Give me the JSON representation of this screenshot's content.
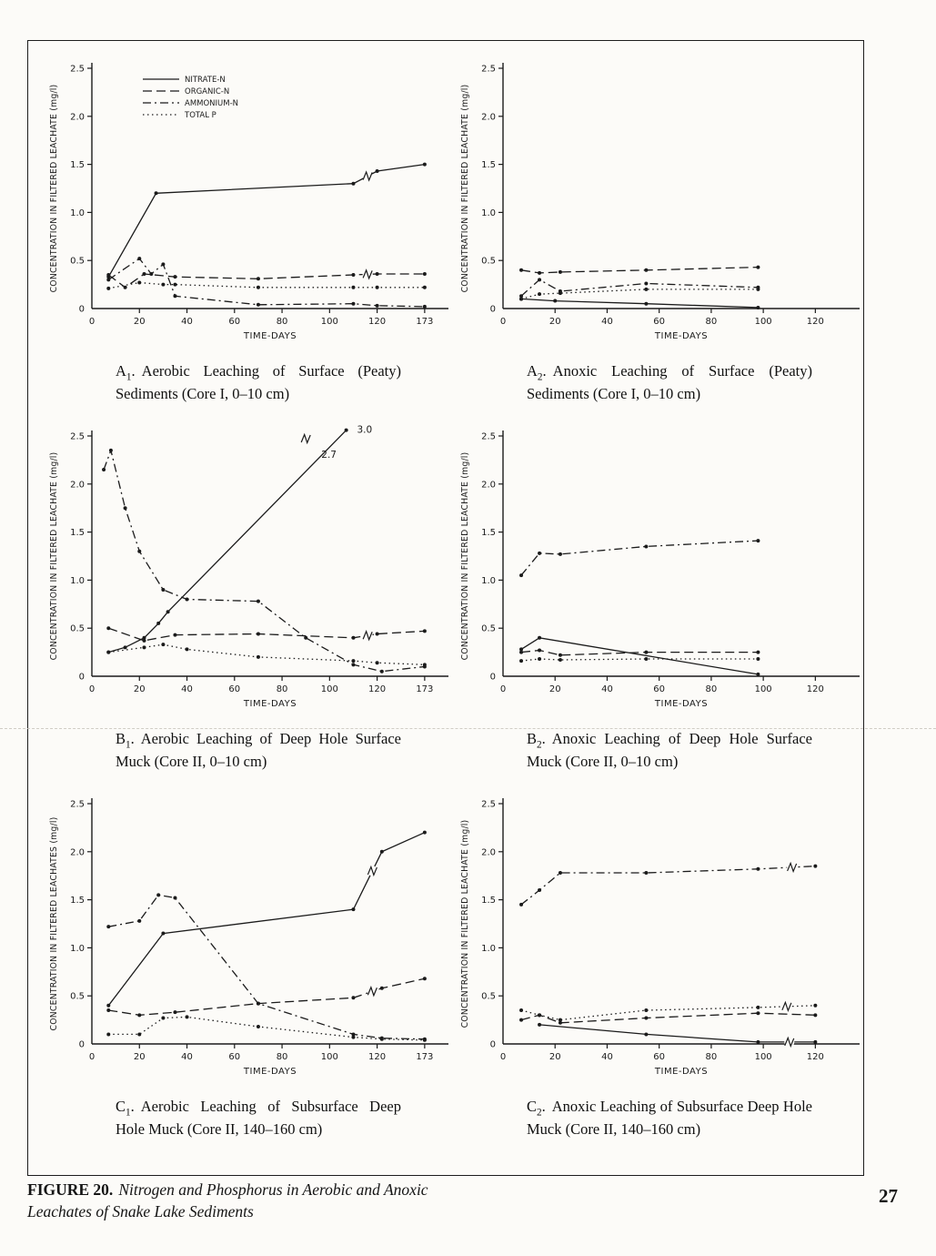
{
  "page": {
    "figure_caption_bold": "FIGURE 20.",
    "figure_caption_italic": "Nitrogen and Phosphorus in Aerobic and Anoxic Leachates of Snake Lake Sediments",
    "page_number": "27"
  },
  "legend": {
    "position": "top-left-inside-chart-A1",
    "items": [
      {
        "label": "NITRATE-N",
        "style": "solid"
      },
      {
        "label": "ORGANIC-N",
        "style": "long-dash"
      },
      {
        "label": "AMMONIUM-N",
        "style": "dash-dot"
      },
      {
        "label": "TOTAL P",
        "style": "dotted"
      }
    ]
  },
  "chart_data": [
    {
      "id": "A1",
      "type": "line",
      "legend": true,
      "caption": {
        "letter": "A",
        "sub": "1",
        "sep": ".",
        "body": "Aerobic Leaching of Surface (Peaty) Sediments (Core I, 0–10 cm)"
      },
      "ylabel": "CONCENTRATION IN FILTERED LEACHATE (mg/l)",
      "xlabel": "TIME-DAYS",
      "ylim": [
        0,
        2.5
      ],
      "xlim": [
        0,
        173
      ],
      "yticks": [
        0,
        0.5,
        1.0,
        1.5,
        2.0,
        2.5
      ],
      "xticks": [
        0,
        20,
        40,
        60,
        80,
        100,
        120
      ],
      "extra_xtick": 173,
      "series": [
        {
          "name": "NITRATE-N",
          "style": "solid",
          "points": [
            [
              7,
              0.33
            ],
            [
              27,
              1.2
            ],
            [
              110,
              1.3
            ],
            [
              120,
              1.43
            ],
            [
              173,
              1.5
            ]
          ],
          "break_at": [
            116
          ]
        },
        {
          "name": "ORGANIC-N",
          "style": "long-dash",
          "points": [
            [
              7,
              0.35
            ],
            [
              14,
              0.22
            ],
            [
              22,
              0.36
            ],
            [
              35,
              0.33
            ],
            [
              70,
              0.31
            ],
            [
              110,
              0.35
            ],
            [
              120,
              0.36
            ],
            [
              173,
              0.36
            ]
          ],
          "break_at": [
            116
          ]
        },
        {
          "name": "AMMONIUM-N",
          "style": "dash-dot",
          "points": [
            [
              7,
              0.3
            ],
            [
              20,
              0.52
            ],
            [
              25,
              0.36
            ],
            [
              30,
              0.46
            ],
            [
              35,
              0.13
            ],
            [
              70,
              0.04
            ],
            [
              110,
              0.05
            ],
            [
              120,
              0.03
            ],
            [
              173,
              0.02
            ]
          ],
          "break_at": []
        },
        {
          "name": "TOTAL P",
          "style": "dotted",
          "points": [
            [
              7,
              0.21
            ],
            [
              20,
              0.27
            ],
            [
              30,
              0.25
            ],
            [
              35,
              0.25
            ],
            [
              70,
              0.22
            ],
            [
              110,
              0.22
            ],
            [
              120,
              0.22
            ],
            [
              173,
              0.22
            ]
          ],
          "break_at": []
        }
      ],
      "annotations": []
    },
    {
      "id": "A2",
      "type": "line",
      "legend": false,
      "caption": {
        "letter": "A",
        "sub": "2",
        "sep": ".",
        "body": "Anoxic Leaching of Surface (Peaty) Sediments (Core I, 0–10 cm)"
      },
      "ylabel": "CONCENTRATION IN FILTERED LEACHATE (mg/l)",
      "xlabel": "TIME-DAYS",
      "ylim": [
        0,
        2.5
      ],
      "xlim": [
        0,
        130
      ],
      "yticks": [
        0,
        0.5,
        1.0,
        1.5,
        2.0,
        2.5
      ],
      "xticks": [
        0,
        20,
        40,
        60,
        80,
        100,
        120
      ],
      "extra_xtick": null,
      "series": [
        {
          "name": "NITRATE-N",
          "style": "solid",
          "points": [
            [
              7,
              0.1
            ],
            [
              20,
              0.08
            ],
            [
              55,
              0.05
            ],
            [
              98,
              0.01
            ]
          ],
          "break_at": []
        },
        {
          "name": "ORGANIC-N",
          "style": "long-dash",
          "points": [
            [
              7,
              0.4
            ],
            [
              14,
              0.37
            ],
            [
              22,
              0.38
            ],
            [
              55,
              0.4
            ],
            [
              98,
              0.43
            ]
          ],
          "break_at": []
        },
        {
          "name": "AMMONIUM-N",
          "style": "dash-dot",
          "points": [
            [
              7,
              0.13
            ],
            [
              14,
              0.3
            ],
            [
              22,
              0.18
            ],
            [
              55,
              0.26
            ],
            [
              98,
              0.22
            ]
          ],
          "break_at": []
        },
        {
          "name": "TOTAL P",
          "style": "dotted",
          "points": [
            [
              7,
              0.1
            ],
            [
              14,
              0.15
            ],
            [
              22,
              0.16
            ],
            [
              55,
              0.2
            ],
            [
              98,
              0.2
            ]
          ],
          "break_at": []
        }
      ],
      "annotations": []
    },
    {
      "id": "B1",
      "type": "line",
      "legend": false,
      "caption": {
        "letter": "B",
        "sub": "1",
        "sep": ".",
        "body": "Aerobic Leaching of Deep Hole Surface Muck (Core II, 0–10 cm)"
      },
      "ylabel": "CONCENTRATION IN FILTERED LEACHATE (mg/l)",
      "xlabel": "TIME-DAYS",
      "ylim": [
        0,
        2.5
      ],
      "xlim": [
        0,
        173
      ],
      "yticks": [
        0,
        0.5,
        1.0,
        1.5,
        2.0,
        2.5
      ],
      "xticks": [
        0,
        20,
        40,
        60,
        80,
        100,
        120
      ],
      "extra_xtick": 173,
      "series": [
        {
          "name": "NITRATE-N",
          "style": "solid",
          "points": [
            [
              7,
              0.25
            ],
            [
              14,
              0.3
            ],
            [
              22,
              0.4
            ],
            [
              28,
              0.55
            ],
            [
              32,
              0.67
            ],
            [
              107,
              3.0
            ]
          ],
          "break_at": [
            90
          ]
        },
        {
          "name": "ORGANIC-N",
          "style": "long-dash",
          "points": [
            [
              7,
              0.5
            ],
            [
              22,
              0.37
            ],
            [
              35,
              0.43
            ],
            [
              70,
              0.44
            ],
            [
              110,
              0.4
            ],
            [
              120,
              0.44
            ],
            [
              173,
              0.47
            ]
          ],
          "break_at": [
            116
          ]
        },
        {
          "name": "AMMONIUM-N",
          "style": "dash-dot",
          "points": [
            [
              5,
              2.15
            ],
            [
              8,
              2.35
            ],
            [
              14,
              1.75
            ],
            [
              20,
              1.3
            ],
            [
              30,
              0.9
            ],
            [
              40,
              0.8
            ],
            [
              70,
              0.78
            ],
            [
              90,
              0.4
            ],
            [
              110,
              0.12
            ],
            [
              122,
              0.05
            ],
            [
              173,
              0.1
            ]
          ],
          "break_at": []
        },
        {
          "name": "TOTAL P",
          "style": "dotted",
          "points": [
            [
              7,
              0.25
            ],
            [
              22,
              0.3
            ],
            [
              30,
              0.33
            ],
            [
              40,
              0.28
            ],
            [
              70,
              0.2
            ],
            [
              110,
              0.16
            ],
            [
              120,
              0.14
            ],
            [
              173,
              0.12
            ]
          ],
          "break_at": []
        }
      ],
      "annotations": [
        {
          "x": 95,
          "y": 2.3,
          "text": "2.7"
        },
        {
          "x": 110,
          "y": 2.56,
          "text": "3.0"
        }
      ]
    },
    {
      "id": "B2",
      "type": "line",
      "legend": false,
      "caption": {
        "letter": "B",
        "sub": "2",
        "sep": ".",
        "body": "Anoxic Leaching of Deep Hole Surface Muck (Core II, 0–10 cm)"
      },
      "ylabel": "CONCENTRATION IN FILTERED LEACHATE (mg/l)",
      "xlabel": "TIME-DAYS",
      "ylim": [
        0,
        2.5
      ],
      "xlim": [
        0,
        130
      ],
      "yticks": [
        0,
        0.5,
        1.0,
        1.5,
        2.0,
        2.5
      ],
      "xticks": [
        0,
        20,
        40,
        60,
        80,
        100,
        120
      ],
      "extra_xtick": null,
      "series": [
        {
          "name": "NITRATE-N",
          "style": "solid",
          "points": [
            [
              7,
              0.28
            ],
            [
              14,
              0.4
            ],
            [
              98,
              0.02
            ]
          ],
          "break_at": []
        },
        {
          "name": "ORGANIC-N",
          "style": "long-dash",
          "points": [
            [
              7,
              0.25
            ],
            [
              14,
              0.27
            ],
            [
              22,
              0.22
            ],
            [
              55,
              0.25
            ],
            [
              98,
              0.25
            ]
          ],
          "break_at": []
        },
        {
          "name": "AMMONIUM-N",
          "style": "dash-dot",
          "points": [
            [
              7,
              1.05
            ],
            [
              14,
              1.28
            ],
            [
              22,
              1.27
            ],
            [
              55,
              1.35
            ],
            [
              98,
              1.41
            ]
          ],
          "break_at": []
        },
        {
          "name": "TOTAL P",
          "style": "dotted",
          "points": [
            [
              7,
              0.16
            ],
            [
              14,
              0.18
            ],
            [
              22,
              0.17
            ],
            [
              55,
              0.18
            ],
            [
              98,
              0.18
            ]
          ],
          "break_at": []
        }
      ],
      "annotations": []
    },
    {
      "id": "C1",
      "type": "line",
      "legend": false,
      "caption": {
        "letter": "C",
        "sub": "1",
        "sep": ".",
        "body": "Aerobic Leaching of Subsurface Deep Hole Muck (Core II, 140–160 cm)"
      },
      "ylabel": "CONCENTRATION IN FILTERED LEACHATES (mg/l)",
      "xlabel": "TIME-DAYS",
      "ylim": [
        0,
        2.5
      ],
      "xlim": [
        0,
        173
      ],
      "yticks": [
        0,
        0.5,
        1.0,
        1.5,
        2.0,
        2.5
      ],
      "xticks": [
        0,
        20,
        40,
        60,
        80,
        100,
        120
      ],
      "extra_xtick": 173,
      "series": [
        {
          "name": "NITRATE-N",
          "style": "solid",
          "points": [
            [
              7,
              0.4
            ],
            [
              30,
              1.15
            ],
            [
              110,
              1.4
            ],
            [
              122,
              2.0
            ],
            [
              173,
              2.2
            ]
          ],
          "break_at": [
            118
          ]
        },
        {
          "name": "ORGANIC-N",
          "style": "long-dash",
          "points": [
            [
              7,
              0.35
            ],
            [
              20,
              0.3
            ],
            [
              35,
              0.33
            ],
            [
              70,
              0.42
            ],
            [
              110,
              0.48
            ],
            [
              122,
              0.58
            ],
            [
              173,
              0.68
            ]
          ],
          "break_at": [
            118
          ]
        },
        {
          "name": "AMMONIUM-N",
          "style": "dash-dot",
          "points": [
            [
              7,
              1.22
            ],
            [
              20,
              1.28
            ],
            [
              28,
              1.55
            ],
            [
              35,
              1.52
            ],
            [
              70,
              0.42
            ],
            [
              110,
              0.1
            ],
            [
              122,
              0.06
            ],
            [
              173,
              0.05
            ]
          ],
          "break_at": []
        },
        {
          "name": "TOTAL P",
          "style": "dotted",
          "points": [
            [
              7,
              0.1
            ],
            [
              20,
              0.1
            ],
            [
              30,
              0.27
            ],
            [
              40,
              0.28
            ],
            [
              70,
              0.18
            ],
            [
              110,
              0.07
            ],
            [
              122,
              0.05
            ],
            [
              173,
              0.04
            ]
          ],
          "break_at": []
        }
      ],
      "annotations": []
    },
    {
      "id": "C2",
      "type": "line",
      "legend": false,
      "caption": {
        "letter": "C",
        "sub": "2",
        "sep": ".",
        "body": "Anoxic Leaching of Subsurface Deep Hole Muck (Core II, 140–160 cm)"
      },
      "ylabel": "CONCENTRATION IN FILTERED LEACHATE (mg/l)",
      "xlabel": "TIME-DAYS",
      "ylim": [
        0,
        2.5
      ],
      "xlim": [
        0,
        130
      ],
      "yticks": [
        0,
        0.5,
        1.0,
        1.5,
        2.0,
        2.5
      ],
      "xticks": [
        0,
        20,
        40,
        60,
        80,
        100,
        120
      ],
      "extra_xtick": null,
      "series": [
        {
          "name": "NITRATE-N",
          "style": "solid",
          "points": [
            [
              14,
              0.2
            ],
            [
              55,
              0.1
            ],
            [
              98,
              0.02
            ],
            [
              120,
              0.02
            ]
          ],
          "break_at": [
            110
          ]
        },
        {
          "name": "ORGANIC-N",
          "style": "long-dash",
          "points": [
            [
              7,
              0.25
            ],
            [
              14,
              0.3
            ],
            [
              22,
              0.22
            ],
            [
              55,
              0.27
            ],
            [
              98,
              0.32
            ],
            [
              120,
              0.3
            ]
          ],
          "break_at": []
        },
        {
          "name": "AMMONIUM-N",
          "style": "dash-dot",
          "points": [
            [
              7,
              1.45
            ],
            [
              14,
              1.6
            ],
            [
              22,
              1.78
            ],
            [
              55,
              1.78
            ],
            [
              98,
              1.82
            ],
            [
              120,
              1.85
            ]
          ],
          "break_at": [
            111
          ]
        },
        {
          "name": "TOTAL P",
          "style": "dotted",
          "points": [
            [
              7,
              0.35
            ],
            [
              14,
              0.3
            ],
            [
              22,
              0.25
            ],
            [
              55,
              0.35
            ],
            [
              98,
              0.38
            ],
            [
              120,
              0.4
            ]
          ],
          "break_at": [
            109
          ]
        }
      ],
      "annotations": []
    }
  ]
}
